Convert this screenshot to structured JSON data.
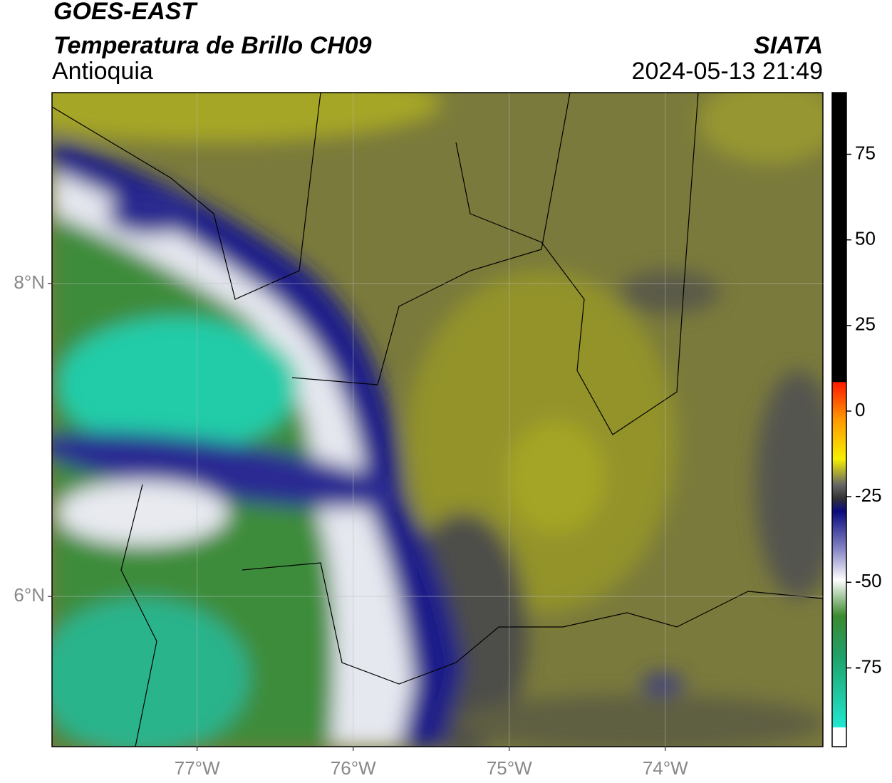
{
  "header": {
    "title": "GOES-EAST",
    "subtitle": "Temperatura de Brillo CH09",
    "region": "Antioquia",
    "organization": "SIATA",
    "timestamp": "2024-05-13 21:49"
  },
  "map": {
    "xlim": [
      -77.93,
      -72.99
    ],
    "ylim": [
      5.04,
      9.22
    ],
    "xticks": [
      {
        "value": -77,
        "label": "77°W"
      },
      {
        "value": -76,
        "label": "76°W"
      },
      {
        "value": -75,
        "label": "75°W"
      },
      {
        "value": -74,
        "label": "74°W"
      }
    ],
    "yticks": [
      {
        "value": 8,
        "label": "8°N"
      },
      {
        "value": 6,
        "label": "6°N"
      }
    ],
    "grid": true
  },
  "colorbar": {
    "lim": [
      -98,
      93
    ],
    "ticks": [
      75,
      50,
      25,
      0,
      -25,
      -50,
      -75
    ]
  }
}
